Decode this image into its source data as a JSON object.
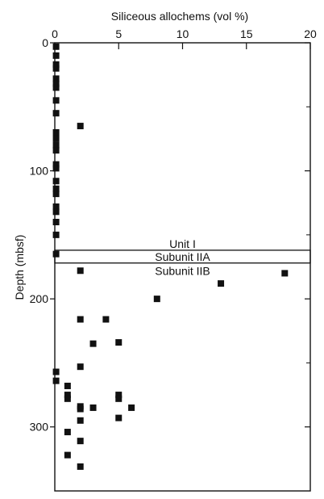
{
  "chart_data": {
    "type": "scatter",
    "title": "",
    "xlabel": "Siliceous allochems (vol %)",
    "ylabel": "Depth (mbsf)",
    "x_axis_position": "top",
    "y_inverted": true,
    "xlim": [
      0,
      20
    ],
    "ylim": [
      0,
      350
    ],
    "x_ticks": [
      0,
      5,
      10,
      15,
      20
    ],
    "x_tick_labels": [
      "0",
      "5",
      "10",
      "15",
      "20"
    ],
    "y_ticks": [
      0,
      100,
      200,
      300
    ],
    "y_tick_labels": [
      "0",
      "100",
      "200",
      "300"
    ],
    "grid": false,
    "marker": "square",
    "marker_color": "#111111",
    "points": [
      [
        0.1,
        3
      ],
      [
        0.1,
        10
      ],
      [
        0.1,
        17
      ],
      [
        0.1,
        20
      ],
      [
        0.1,
        28
      ],
      [
        0.1,
        32
      ],
      [
        0.1,
        35
      ],
      [
        0.1,
        45
      ],
      [
        0.1,
        55
      ],
      [
        2.0,
        65
      ],
      [
        0.1,
        70
      ],
      [
        0.1,
        75
      ],
      [
        0.1,
        80
      ],
      [
        0.1,
        84
      ],
      [
        0.1,
        95
      ],
      [
        0.1,
        98
      ],
      [
        0.1,
        108
      ],
      [
        0.1,
        114
      ],
      [
        0.1,
        118
      ],
      [
        0.1,
        128
      ],
      [
        0.1,
        132
      ],
      [
        0.1,
        140
      ],
      [
        0.1,
        150
      ],
      [
        0.1,
        165
      ],
      [
        2.0,
        178
      ],
      [
        13.0,
        188
      ],
      [
        18.0,
        180
      ],
      [
        8.0,
        200
      ],
      [
        2.0,
        216
      ],
      [
        4.0,
        216
      ],
      [
        3.0,
        235
      ],
      [
        5.0,
        234
      ],
      [
        2.0,
        253
      ],
      [
        0.1,
        257
      ],
      [
        0.1,
        264
      ],
      [
        1.0,
        268
      ],
      [
        1.0,
        275
      ],
      [
        1.0,
        278
      ],
      [
        5.0,
        275
      ],
      [
        5.0,
        278
      ],
      [
        2.0,
        284
      ],
      [
        3.0,
        285
      ],
      [
        6.0,
        285
      ],
      [
        2.0,
        286
      ],
      [
        5.0,
        293
      ],
      [
        2.0,
        295
      ],
      [
        1.0,
        304
      ],
      [
        2.0,
        311
      ],
      [
        1.0,
        322
      ],
      [
        2.0,
        331
      ]
    ],
    "unit_boundaries": [
      {
        "label": "Unit I",
        "label_depth": 157,
        "label_x": 10
      },
      {
        "label": "Subunit IIA",
        "top": 162,
        "bottom": 172,
        "label_depth": 167,
        "label_x": 10
      },
      {
        "label": "Subunit IIB",
        "label_depth": 178,
        "label_x": 10
      }
    ]
  }
}
